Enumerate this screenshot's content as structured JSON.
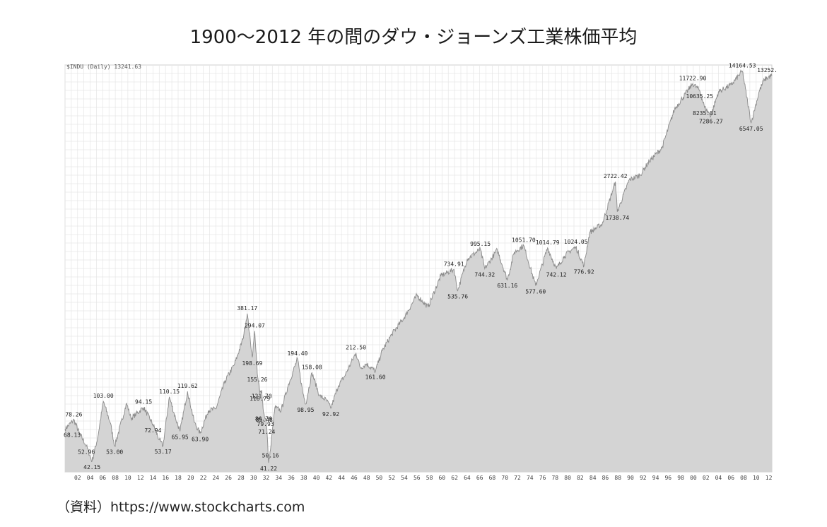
{
  "title": "1900～2012 年の間のダウ・ジョーンズ工業株価平均",
  "source": "（資料）https://www.stockcharts.com",
  "chart_data": {
    "type": "area",
    "header": "$INDU (Daily) 13241.63",
    "x_start": 1900,
    "x_end": 2012.5,
    "ylim": [
      36,
      15500
    ],
    "log_scale": true,
    "grid": true,
    "x_tick_labels": [
      "02",
      "04",
      "06",
      "08",
      "10",
      "12",
      "14",
      "16",
      "18",
      "20",
      "22",
      "24",
      "26",
      "28",
      "30",
      "32",
      "34",
      "36",
      "38",
      "40",
      "42",
      "44",
      "46",
      "48",
      "50",
      "52",
      "54",
      "56",
      "58",
      "60",
      "62",
      "64",
      "66",
      "68",
      "70",
      "72",
      "74",
      "76",
      "78",
      "80",
      "82",
      "84",
      "86",
      "88",
      "90",
      "92",
      "94",
      "96",
      "98",
      "00",
      "02",
      "04",
      "06",
      "08",
      "10",
      "12"
    ],
    "series": [
      {
        "points": [
          [
            1900.0,
            68.13
          ],
          [
            1901.4,
            78.26
          ],
          [
            1902.3,
            64
          ],
          [
            1903.4,
            52.96
          ],
          [
            1904.3,
            42.15
          ],
          [
            1905.2,
            60
          ],
          [
            1906.1,
            103.0
          ],
          [
            1907.2,
            75
          ],
          [
            1907.9,
            53.0
          ],
          [
            1909.8,
            100
          ],
          [
            1910.5,
            80
          ],
          [
            1911.3,
            85
          ],
          [
            1912.5,
            94.15
          ],
          [
            1914.0,
            72.94
          ],
          [
            1915.0,
            58
          ],
          [
            1915.6,
            53.17
          ],
          [
            1916.6,
            110.15
          ],
          [
            1917.6,
            80
          ],
          [
            1918.3,
            65.95
          ],
          [
            1919.5,
            119.62
          ],
          [
            1920.6,
            75
          ],
          [
            1921.5,
            63.9
          ],
          [
            1922.8,
            90
          ],
          [
            1924.0,
            92
          ],
          [
            1925.5,
            140
          ],
          [
            1927.0,
            180
          ],
          [
            1928.3,
            260
          ],
          [
            1929.0,
            381.17
          ],
          [
            1929.8,
            198.69
          ],
          [
            1930.2,
            294.07
          ],
          [
            1930.6,
            155.26
          ],
          [
            1931.0,
            116.79
          ],
          [
            1931.3,
            121.7
          ],
          [
            1931.6,
            86.7
          ],
          [
            1931.9,
            79.93
          ],
          [
            1932.1,
            71.24
          ],
          [
            1932.4,
            41.22
          ],
          [
            1932.7,
            50.16
          ],
          [
            1933.4,
            94
          ],
          [
            1934.4,
            90
          ],
          [
            1935.5,
            130
          ],
          [
            1937.0,
            194.4
          ],
          [
            1937.8,
            120
          ],
          [
            1938.3,
            98.95
          ],
          [
            1939.3,
            158.08
          ],
          [
            1940.5,
            112
          ],
          [
            1941.6,
            105
          ],
          [
            1942.3,
            92.92
          ],
          [
            1943.5,
            130
          ],
          [
            1944.5,
            150
          ],
          [
            1946.3,
            212.5
          ],
          [
            1947.0,
            170
          ],
          [
            1948.0,
            180
          ],
          [
            1949.4,
            161.6
          ],
          [
            1950.5,
            220
          ],
          [
            1952.0,
            280
          ],
          [
            1954.0,
            360
          ],
          [
            1956.0,
            500
          ],
          [
            1957.8,
            420
          ],
          [
            1959.8,
            670
          ],
          [
            1961.9,
            734.91
          ],
          [
            1962.5,
            535.76
          ],
          [
            1964.0,
            860
          ],
          [
            1966.1,
            995.15
          ],
          [
            1966.8,
            744.32
          ],
          [
            1968.8,
            985
          ],
          [
            1970.4,
            631.16
          ],
          [
            1971.5,
            950
          ],
          [
            1973.0,
            1051.7
          ],
          [
            1974.9,
            577.6
          ],
          [
            1976.8,
            1014.79
          ],
          [
            1978.2,
            742.12
          ],
          [
            1979.5,
            900
          ],
          [
            1980.8,
            1000
          ],
          [
            1981.3,
            1024.05
          ],
          [
            1982.6,
            776.92
          ],
          [
            1983.5,
            1280
          ],
          [
            1985.5,
            1450
          ],
          [
            1987.6,
            2722.42
          ],
          [
            1987.9,
            1738.74
          ],
          [
            1989.8,
            2800
          ],
          [
            1991.5,
            3000
          ],
          [
            1993.0,
            3700
          ],
          [
            1995.0,
            4500
          ],
          [
            1997.0,
            8000
          ],
          [
            1999.9,
            11722.9
          ],
          [
            2001.0,
            10635.25
          ],
          [
            2001.8,
            8235.81
          ],
          [
            2002.8,
            7286.27
          ],
          [
            2004.0,
            10400
          ],
          [
            2006.0,
            11500
          ],
          [
            2007.8,
            14164.53
          ],
          [
            2009.2,
            6547.05
          ],
          [
            2010.5,
            10500
          ],
          [
            2011.3,
            12500
          ],
          [
            2012.5,
            13252
          ]
        ]
      }
    ],
    "annotations": [
      {
        "label": "68.13",
        "x": 1900.0,
        "y": 68.13,
        "pos": "below"
      },
      {
        "label": "78.26",
        "x": 1901.4,
        "y": 78.26,
        "pos": "above"
      },
      {
        "label": "52.96",
        "x": 1903.4,
        "y": 52.96,
        "pos": "below"
      },
      {
        "label": "42.15",
        "x": 1904.3,
        "y": 42.15,
        "pos": "below"
      },
      {
        "label": "103.00",
        "x": 1906.1,
        "y": 103.0,
        "pos": "above"
      },
      {
        "label": "53.00",
        "x": 1907.9,
        "y": 53.0,
        "pos": "below"
      },
      {
        "label": "94.15",
        "x": 1912.5,
        "y": 94.15,
        "pos": "above"
      },
      {
        "label": "72.94",
        "x": 1914.0,
        "y": 72.94,
        "pos": "below"
      },
      {
        "label": "53.17",
        "x": 1915.6,
        "y": 53.17,
        "pos": "below"
      },
      {
        "label": "110.15",
        "x": 1916.6,
        "y": 110.15,
        "pos": "above"
      },
      {
        "label": "65.95",
        "x": 1918.3,
        "y": 65.95,
        "pos": "below"
      },
      {
        "label": "119.62",
        "x": 1919.5,
        "y": 119.62,
        "pos": "above"
      },
      {
        "label": "63.90",
        "x": 1921.5,
        "y": 63.9,
        "pos": "below"
      },
      {
        "label": "381.17",
        "x": 1929.0,
        "y": 381.17,
        "pos": "above"
      },
      {
        "label": "294.07",
        "x": 1930.2,
        "y": 294.07,
        "pos": "above"
      },
      {
        "label": "198.69",
        "x": 1929.8,
        "y": 198.69,
        "pos": "below"
      },
      {
        "label": "155.26",
        "x": 1930.6,
        "y": 155.26,
        "pos": "below"
      },
      {
        "label": "116.79",
        "x": 1931.0,
        "y": 116.79,
        "pos": "below"
      },
      {
        "label": "121.70",
        "x": 1931.3,
        "y": 121.7,
        "pos": "below"
      },
      {
        "label": "86.70",
        "x": 1931.6,
        "y": 86.7,
        "pos": "below"
      },
      {
        "label": "79.93",
        "x": 1931.9,
        "y": 79.93,
        "pos": "below"
      },
      {
        "label": "85.48",
        "x": 1931.7,
        "y": 85.48,
        "pos": "below"
      },
      {
        "label": "71.24",
        "x": 1932.1,
        "y": 71.24,
        "pos": "below"
      },
      {
        "label": "50.16",
        "x": 1932.7,
        "y": 50.16,
        "pos": "below"
      },
      {
        "label": "41.22",
        "x": 1932.4,
        "y": 41.22,
        "pos": "below"
      },
      {
        "label": "194.40",
        "x": 1937.0,
        "y": 194.4,
        "pos": "above"
      },
      {
        "label": "158.08",
        "x": 1939.3,
        "y": 158.08,
        "pos": "above"
      },
      {
        "label": "98.95",
        "x": 1938.3,
        "y": 98.95,
        "pos": "below"
      },
      {
        "label": "92.92",
        "x": 1942.3,
        "y": 92.92,
        "pos": "below"
      },
      {
        "label": "212.50",
        "x": 1946.3,
        "y": 212.5,
        "pos": "above"
      },
      {
        "label": "161.60",
        "x": 1949.4,
        "y": 161.6,
        "pos": "below"
      },
      {
        "label": "734.91",
        "x": 1961.9,
        "y": 734.91,
        "pos": "above"
      },
      {
        "label": "535.76",
        "x": 1962.5,
        "y": 535.76,
        "pos": "below"
      },
      {
        "label": "995.15",
        "x": 1966.1,
        "y": 995.15,
        "pos": "above"
      },
      {
        "label": "744.32",
        "x": 1966.8,
        "y": 744.32,
        "pos": "below"
      },
      {
        "label": "631.16",
        "x": 1970.4,
        "y": 631.16,
        "pos": "below"
      },
      {
        "label": "1051.70",
        "x": 1973.0,
        "y": 1051.7,
        "pos": "above"
      },
      {
        "label": "577.60",
        "x": 1974.9,
        "y": 577.6,
        "pos": "below"
      },
      {
        "label": "1014.79",
        "x": 1976.8,
        "y": 1014.79,
        "pos": "above"
      },
      {
        "label": "742.12",
        "x": 1978.2,
        "y": 742.12,
        "pos": "below"
      },
      {
        "label": "1024.05",
        "x": 1981.3,
        "y": 1024.05,
        "pos": "above"
      },
      {
        "label": "776.92",
        "x": 1982.6,
        "y": 776.92,
        "pos": "below"
      },
      {
        "label": "2722.42",
        "x": 1987.6,
        "y": 2722.42,
        "pos": "above"
      },
      {
        "label": "1738.74",
        "x": 1987.9,
        "y": 1738.74,
        "pos": "below"
      },
      {
        "label": "11722.90",
        "x": 1999.9,
        "y": 11722.9,
        "pos": "above"
      },
      {
        "label": "10635.25",
        "x": 2001.0,
        "y": 10635.25,
        "pos": "below"
      },
      {
        "label": "8235.81",
        "x": 2001.8,
        "y": 8235.81,
        "pos": "below"
      },
      {
        "label": "7286.27",
        "x": 2002.8,
        "y": 7286.27,
        "pos": "below"
      },
      {
        "label": "14164.53",
        "x": 2007.8,
        "y": 14164.53,
        "pos": "above"
      },
      {
        "label": "6547.05",
        "x": 2009.2,
        "y": 6547.05,
        "pos": "below"
      },
      {
        "label": "13252.",
        "x": 2012.5,
        "y": 13252,
        "pos": "above"
      }
    ],
    "colors": {
      "fill": "#d4d4d4",
      "line": "#8a8a8a",
      "grid": "#e6e6e6",
      "frame": "#cfcfcf"
    }
  }
}
